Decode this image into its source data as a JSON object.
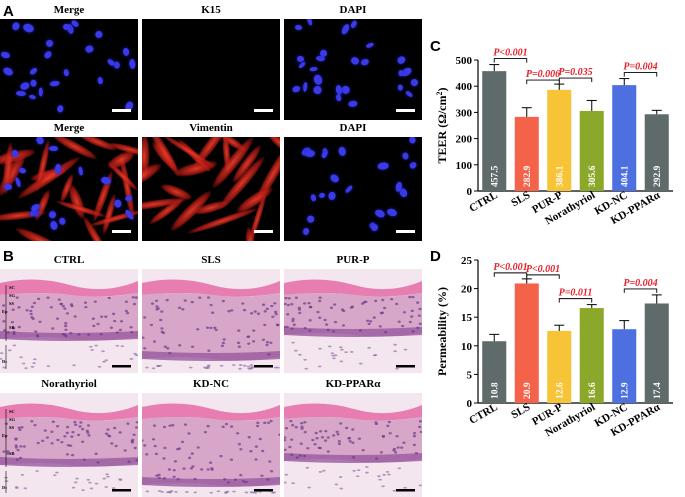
{
  "panel_a": {
    "label": "A",
    "titles": [
      "Merge",
      "K15",
      "DAPI",
      "Merge",
      "Vimentin",
      "DAPI"
    ]
  },
  "panel_b": {
    "label": "B",
    "titles": [
      "CTRL",
      "SLS",
      "PUR-P",
      "Norathyriol",
      "KD-NC",
      "KD-PPARα"
    ],
    "layer_labels": [
      "SC",
      "SG",
      "SS",
      "Ep",
      "SB",
      "Dc"
    ]
  },
  "chart_data": [
    {
      "panel": "C",
      "type": "bar",
      "ylabel": "TEER (Ω/cm²)",
      "ylabel_main": "TEER (Ω/cm",
      "ylabel_sup": "2",
      "ylabel_end": ")",
      "ylim": [
        0,
        500
      ],
      "yticks": [
        0,
        100,
        200,
        300,
        400,
        500
      ],
      "categories": [
        "CTRL",
        "SLS",
        "PUR-P",
        "Norathyriol",
        "KD-NC",
        "KD-PPARα"
      ],
      "values": [
        457.5,
        282.9,
        386.1,
        305.6,
        404.1,
        292.9
      ],
      "value_labels": [
        "457.5",
        "282.9",
        "386.1",
        "305.6",
        "404.1",
        "292.9"
      ],
      "errors": [
        25,
        35,
        22,
        40,
        25,
        15
      ],
      "colors": [
        "#5f6b6b",
        "#f4624a",
        "#f8c437",
        "#8ca82a",
        "#4e6fe0",
        "#5f6b6b"
      ],
      "annotations": [
        {
          "text": "P<0.001",
          "from": 0,
          "to": 1
        },
        {
          "text": "P=0.006",
          "from": 1,
          "to": 2
        },
        {
          "text": "P=0.035",
          "from": 2,
          "to": 3
        },
        {
          "text": "P=0.004",
          "from": 4,
          "to": 5
        }
      ]
    },
    {
      "panel": "D",
      "type": "bar",
      "ylabel": "Permeability (%)",
      "ylim": [
        0,
        25
      ],
      "yticks": [
        0,
        5,
        10,
        15,
        20,
        25
      ],
      "categories": [
        "CTRL",
        "SLS",
        "PUR-P",
        "Norathyriol",
        "KD-NC",
        "KD-PPARα"
      ],
      "values": [
        10.8,
        20.9,
        12.6,
        16.6,
        12.9,
        17.4
      ],
      "value_labels": [
        "10.8",
        "20.9",
        "12.6",
        "16.6",
        "12.9",
        "17.4"
      ],
      "errors": [
        1.2,
        0.8,
        1.0,
        0.6,
        1.5,
        1.5
      ],
      "colors": [
        "#5f6b6b",
        "#f4624a",
        "#f8c437",
        "#8ca82a",
        "#4e6fe0",
        "#5f6b6b"
      ],
      "annotations": [
        {
          "text": "P<0.001",
          "from": 0,
          "to": 1
        },
        {
          "text": "P<0.001",
          "from": 1,
          "to": 2
        },
        {
          "text": "P=0.011",
          "from": 2,
          "to": 3
        },
        {
          "text": "P=0.004",
          "from": 4,
          "to": 5
        }
      ]
    }
  ],
  "colors": {
    "annotation": "#e8202a",
    "nuclei": "#3a3ae8",
    "vimentin": "#d6281e",
    "he_pink": "#e46aa6"
  }
}
